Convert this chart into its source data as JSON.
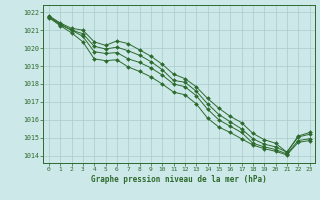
{
  "title": "Graphe pression niveau de la mer (hPa)",
  "bg_color": "#cde8e8",
  "grid_color": "#aacccc",
  "line_color": "#2d6a2d",
  "marker_color": "#2d6a2d",
  "ylim": [
    1013.6,
    1022.4
  ],
  "xlim": [
    -0.5,
    23.5
  ],
  "yticks": [
    1014,
    1015,
    1016,
    1017,
    1018,
    1019,
    1020,
    1021,
    1022
  ],
  "xticks": [
    0,
    1,
    2,
    3,
    4,
    5,
    6,
    7,
    8,
    9,
    10,
    11,
    12,
    13,
    14,
    15,
    16,
    17,
    18,
    19,
    20,
    21,
    22,
    23
  ],
  "series": [
    [
      1021.8,
      1021.4,
      1021.1,
      1021.0,
      1020.35,
      1020.15,
      1020.4,
      1020.25,
      1019.9,
      1019.55,
      1019.1,
      1018.55,
      1018.3,
      1017.85,
      1017.2,
      1016.65,
      1016.2,
      1015.85,
      1015.25,
      1014.9,
      1014.7,
      1014.2,
      1015.1,
      1015.3
    ],
    [
      1021.75,
      1021.35,
      1021.0,
      1020.8,
      1020.1,
      1019.95,
      1020.05,
      1019.85,
      1019.6,
      1019.25,
      1018.8,
      1018.2,
      1018.1,
      1017.6,
      1016.9,
      1016.3,
      1015.9,
      1015.5,
      1014.95,
      1014.65,
      1014.5,
      1014.2,
      1015.05,
      1015.2
    ],
    [
      1021.75,
      1021.3,
      1021.0,
      1020.65,
      1019.8,
      1019.7,
      1019.75,
      1019.4,
      1019.2,
      1018.9,
      1018.5,
      1018.0,
      1017.85,
      1017.35,
      1016.6,
      1016.0,
      1015.65,
      1015.3,
      1014.7,
      1014.5,
      1014.35,
      1014.1,
      1014.85,
      1014.95
    ],
    [
      1021.7,
      1021.25,
      1020.85,
      1020.35,
      1019.4,
      1019.3,
      1019.35,
      1018.95,
      1018.7,
      1018.4,
      1018.0,
      1017.55,
      1017.4,
      1016.9,
      1016.1,
      1015.6,
      1015.3,
      1014.95,
      1014.6,
      1014.4,
      1014.25,
      1014.05,
      1014.75,
      1014.85
    ]
  ]
}
